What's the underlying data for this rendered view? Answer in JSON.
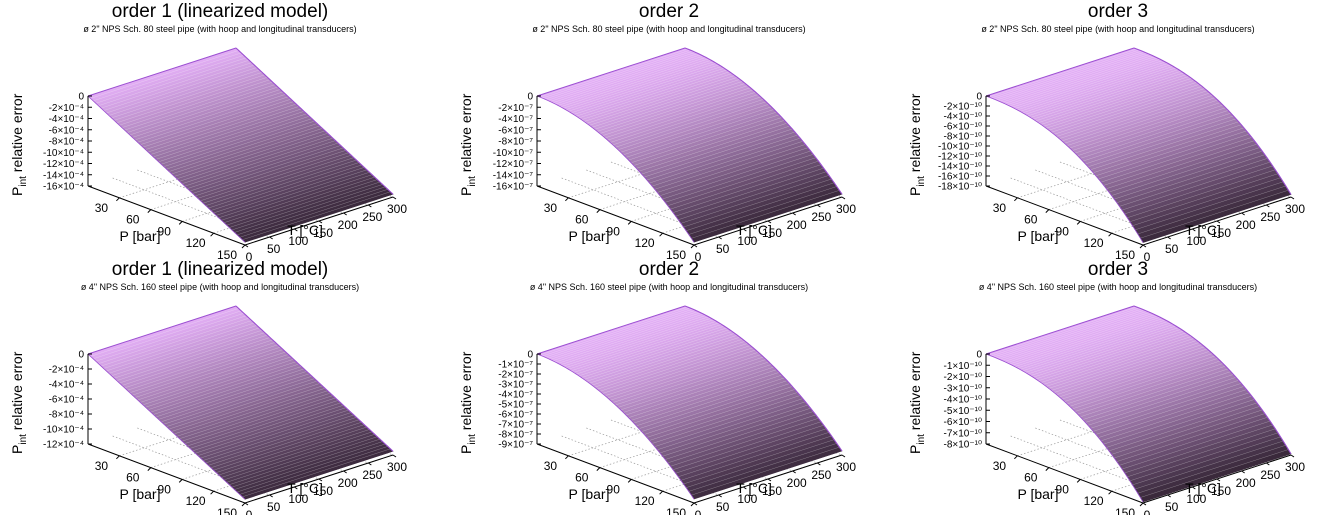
{
  "chart_data": [
    {
      "type": "surface",
      "title": "order 1 (linearized model)",
      "subtitle": "ø 2\" NPS Sch. 80 steel pipe (with hoop and longitudinal transducers)",
      "xlabel": "P [bar]",
      "ylabel": "T [°C]",
      "zlabel_main": "P",
      "zlabel_sub": "int",
      "zlabel_rest": " relative error",
      "x_ticks": [
        "30",
        "60",
        "90",
        "120",
        "150"
      ],
      "y_ticks": [
        "0",
        "50",
        "100",
        "150",
        "200",
        "250",
        "300"
      ],
      "z_ticks": [
        "0",
        "-2×10⁻⁴",
        "-4×10⁻⁴",
        "-6×10⁻⁴",
        "-8×10⁻⁴",
        "-10×10⁻⁴",
        "-12×10⁻⁴",
        "-14×10⁻⁴",
        "-16×10⁻⁴"
      ],
      "xlim": [
        0,
        150
      ],
      "ylim": [
        0,
        300
      ],
      "zlim": [
        -0.0016,
        0
      ],
      "z_at_max_P": -0.00155,
      "curvature": 0
    },
    {
      "type": "surface",
      "title": "order 2",
      "subtitle": "ø 2\" NPS Sch. 80 steel pipe (with hoop and longitudinal transducers)",
      "xlabel": "P [bar]",
      "ylabel": "T [°C]",
      "zlabel_main": "P",
      "zlabel_sub": "int",
      "zlabel_rest": " relative error",
      "x_ticks": [
        "30",
        "60",
        "90",
        "120",
        "150"
      ],
      "y_ticks": [
        "0",
        "50",
        "100",
        "150",
        "200",
        "250",
        "300"
      ],
      "z_ticks": [
        "0",
        "-2×10⁻⁷",
        "-4×10⁻⁷",
        "-6×10⁻⁷",
        "-8×10⁻⁷",
        "-10×10⁻⁷",
        "-12×10⁻⁷",
        "-14×10⁻⁷",
        "-16×10⁻⁷"
      ],
      "xlim": [
        0,
        150
      ],
      "ylim": [
        0,
        300
      ],
      "zlim": [
        -1.6e-06,
        0
      ],
      "z_at_max_P": -1.55e-06,
      "curvature": 2
    },
    {
      "type": "surface",
      "title": "order 3",
      "subtitle": "ø 2\" NPS Sch. 80 steel pipe (with hoop and longitudinal transducers)",
      "xlabel": "P [bar]",
      "ylabel": "T [°C]",
      "zlabel_main": "P",
      "zlabel_sub": "int",
      "zlabel_rest": " relative error",
      "x_ticks": [
        "30",
        "60",
        "90",
        "120",
        "150"
      ],
      "y_ticks": [
        "0",
        "50",
        "100",
        "150",
        "200",
        "250",
        "300"
      ],
      "z_ticks": [
        "0",
        "-2×10⁻¹⁰",
        "-4×10⁻¹⁰",
        "-6×10⁻¹⁰",
        "-8×10⁻¹⁰",
        "-10×10⁻¹⁰",
        "-12×10⁻¹⁰",
        "-14×10⁻¹⁰",
        "-16×10⁻¹⁰",
        "-18×10⁻¹⁰"
      ],
      "xlim": [
        0,
        150
      ],
      "ylim": [
        0,
        300
      ],
      "zlim": [
        -1.8e-09,
        0
      ],
      "z_at_max_P": -1.75e-09,
      "curvature": 3
    },
    {
      "type": "surface",
      "title": "order 1 (linearized model)",
      "subtitle": "ø 4\" NPS Sch. 160 steel pipe (with hoop and longitudinal transducers)",
      "xlabel": "P [bar]",
      "ylabel": "T [°C]",
      "zlabel_main": "P",
      "zlabel_sub": "int",
      "zlabel_rest": " relative error",
      "x_ticks": [
        "30",
        "60",
        "90",
        "120",
        "150"
      ],
      "y_ticks": [
        "0",
        "50",
        "100",
        "150",
        "200",
        "250",
        "300"
      ],
      "z_ticks": [
        "0",
        "-2×10⁻⁴",
        "-4×10⁻⁴",
        "-6×10⁻⁴",
        "-8×10⁻⁴",
        "-10×10⁻⁴",
        "-12×10⁻⁴"
      ],
      "xlim": [
        0,
        150
      ],
      "ylim": [
        0,
        300
      ],
      "zlim": [
        -0.0012,
        0
      ],
      "z_at_max_P": -0.00115,
      "curvature": 0
    },
    {
      "type": "surface",
      "title": "order 2",
      "subtitle": "ø 4\" NPS Sch. 160 steel pipe (with hoop and longitudinal transducers)",
      "xlabel": "P [bar]",
      "ylabel": "T [°C]",
      "zlabel_main": "P",
      "zlabel_sub": "int",
      "zlabel_rest": " relative error",
      "x_ticks": [
        "30",
        "60",
        "90",
        "120",
        "150"
      ],
      "y_ticks": [
        "0",
        "50",
        "100",
        "150",
        "200",
        "250",
        "300"
      ],
      "z_ticks": [
        "0",
        "-1×10⁻⁷",
        "-2×10⁻⁷",
        "-3×10⁻⁷",
        "-4×10⁻⁷",
        "-5×10⁻⁷",
        "-6×10⁻⁷",
        "-7×10⁻⁷",
        "-8×10⁻⁷",
        "-9×10⁻⁷"
      ],
      "xlim": [
        0,
        150
      ],
      "ylim": [
        0,
        300
      ],
      "zlim": [
        -9e-07,
        0
      ],
      "z_at_max_P": -8.6e-07,
      "curvature": 2
    },
    {
      "type": "surface",
      "title": "order 3",
      "subtitle": "ø 4\" NPS Sch. 160 steel pipe (with hoop and longitudinal transducers)",
      "xlabel": "P [bar]",
      "ylabel": "T [°C]",
      "zlabel_main": "P",
      "zlabel_sub": "int",
      "zlabel_rest": " relative error",
      "x_ticks": [
        "30",
        "60",
        "90",
        "120",
        "150"
      ],
      "y_ticks": [
        "0",
        "50",
        "100",
        "150",
        "200",
        "250",
        "300"
      ],
      "z_ticks": [
        "0",
        "-1×10⁻¹⁰",
        "-2×10⁻¹⁰",
        "-3×10⁻¹⁰",
        "-4×10⁻¹⁰",
        "-5×10⁻¹⁰",
        "-6×10⁻¹⁰",
        "-7×10⁻¹⁰",
        "-8×10⁻¹⁰"
      ],
      "xlim": [
        0,
        150
      ],
      "ylim": [
        0,
        300
      ],
      "zlim": [
        -8e-10,
        0
      ],
      "z_at_max_P": -7.9e-10,
      "curvature": 3
    }
  ],
  "colors": {
    "surface_top": "#e2aef5",
    "surface_bottom": "#2b1d2b",
    "mesh_line": "#ffffff",
    "edge": "#9b4fd1",
    "axis": "#000000",
    "grid": "#9a9a9a"
  }
}
